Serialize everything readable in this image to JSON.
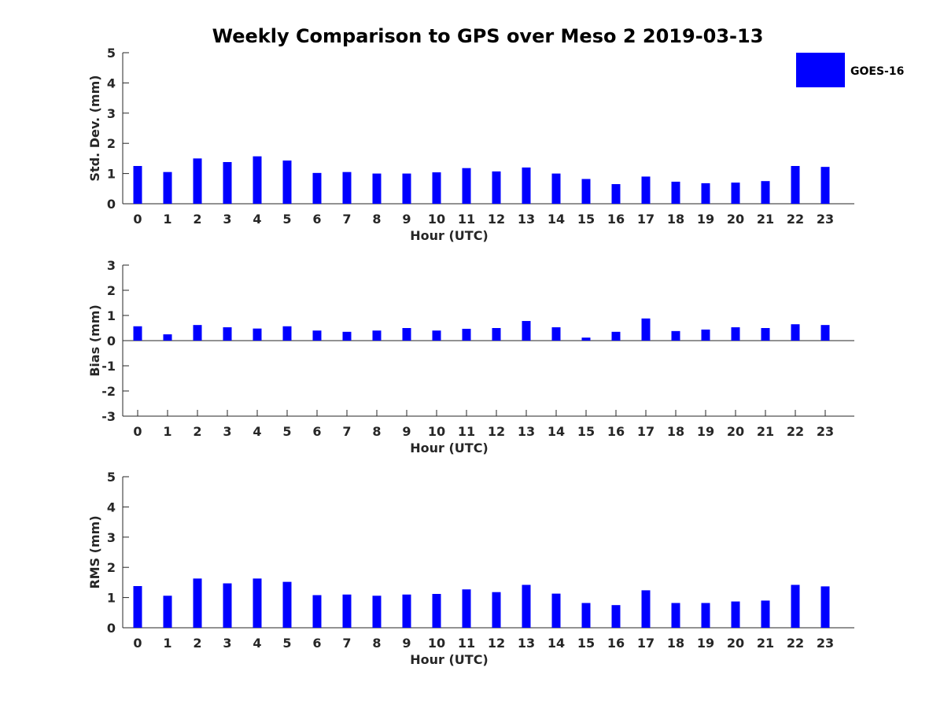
{
  "chart_data": [
    {
      "type": "bar",
      "title": "Weekly Comparison to GPS over Meso 2 2019-03-13",
      "xlabel": "Hour (UTC)",
      "ylabel": "Std. Dev. (mm)",
      "ylim": [
        0,
        5
      ],
      "yticks": [
        0,
        1,
        2,
        3,
        4,
        5
      ],
      "categories": [
        "0",
        "1",
        "2",
        "3",
        "4",
        "5",
        "6",
        "7",
        "8",
        "9",
        "10",
        "11",
        "12",
        "13",
        "14",
        "15",
        "16",
        "17",
        "18",
        "19",
        "20",
        "21",
        "22",
        "23"
      ],
      "series": [
        {
          "name": "GOES-16",
          "color": "#0000ff",
          "values": [
            1.25,
            1.05,
            1.5,
            1.38,
            1.57,
            1.43,
            1.02,
            1.05,
            1.0,
            1.0,
            1.04,
            1.18,
            1.07,
            1.2,
            1.0,
            0.82,
            0.65,
            0.9,
            0.73,
            0.68,
            0.7,
            0.75,
            1.25,
            1.22
          ]
        }
      ],
      "legend": {
        "position": "top-right",
        "entries": [
          "GOES-16"
        ]
      }
    },
    {
      "type": "bar",
      "xlabel": "Hour (UTC)",
      "ylabel": "Bias (mm)",
      "ylim": [
        -3,
        3
      ],
      "yticks": [
        -3,
        -2,
        -1,
        0,
        1,
        2,
        3
      ],
      "zero_line": true,
      "categories": [
        "0",
        "1",
        "2",
        "3",
        "4",
        "5",
        "6",
        "7",
        "8",
        "9",
        "10",
        "11",
        "12",
        "13",
        "14",
        "15",
        "16",
        "17",
        "18",
        "19",
        "20",
        "21",
        "22",
        "23"
      ],
      "series": [
        {
          "name": "GOES-16",
          "color": "#0000ff",
          "values": [
            0.57,
            0.25,
            0.62,
            0.53,
            0.48,
            0.57,
            0.4,
            0.35,
            0.4,
            0.5,
            0.4,
            0.47,
            0.5,
            0.78,
            0.53,
            0.12,
            0.35,
            0.88,
            0.38,
            0.44,
            0.53,
            0.5,
            0.65,
            0.62
          ]
        }
      ]
    },
    {
      "type": "bar",
      "xlabel": "Hour (UTC)",
      "ylabel": "RMS (mm)",
      "ylim": [
        0,
        5
      ],
      "yticks": [
        0,
        1,
        2,
        3,
        4,
        5
      ],
      "categories": [
        "0",
        "1",
        "2",
        "3",
        "4",
        "5",
        "6",
        "7",
        "8",
        "9",
        "10",
        "11",
        "12",
        "13",
        "14",
        "15",
        "16",
        "17",
        "18",
        "19",
        "20",
        "21",
        "22",
        "23"
      ],
      "series": [
        {
          "name": "GOES-16",
          "color": "#0000ff",
          "values": [
            1.38,
            1.06,
            1.63,
            1.47,
            1.63,
            1.52,
            1.08,
            1.1,
            1.06,
            1.1,
            1.12,
            1.27,
            1.18,
            1.42,
            1.13,
            0.82,
            0.75,
            1.24,
            0.82,
            0.82,
            0.87,
            0.9,
            1.42,
            1.37
          ]
        }
      ]
    }
  ]
}
